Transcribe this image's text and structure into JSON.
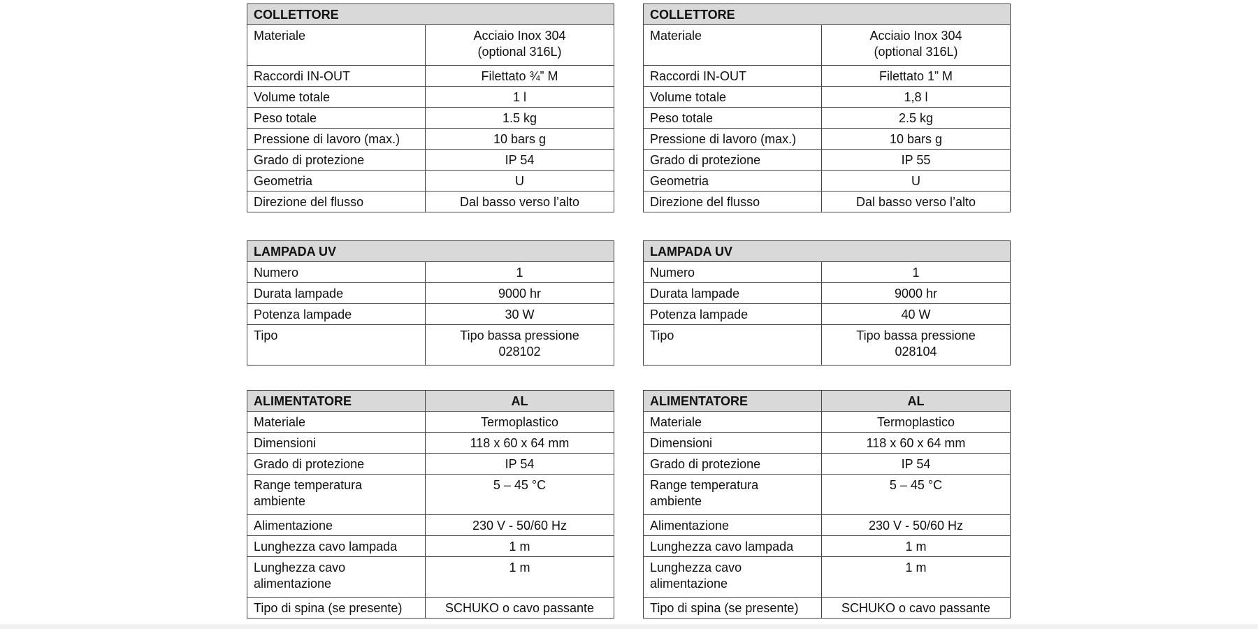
{
  "columns": [
    {
      "collettore": {
        "title": "COLLETTORE",
        "rows": [
          {
            "label": "Materiale",
            "value": "Acciaio Inox 304\n(optional 316L)",
            "tall": true
          },
          {
            "label": "Raccordi IN-OUT",
            "value": "Filettato ¾” M"
          },
          {
            "label": "Volume totale",
            "value": "1  l"
          },
          {
            "label": "Peso totale",
            "value": "1.5 kg"
          },
          {
            "label": "Pressione di lavoro (max.)",
            "value": "10 bars g"
          },
          {
            "label": "Grado di protezione",
            "value": "IP 54"
          },
          {
            "label": "Geometria",
            "value": "U"
          },
          {
            "label": "Direzione del flusso",
            "value": "Dal basso verso l’alto"
          }
        ]
      },
      "lampada": {
        "title": "LAMPADA UV",
        "rows": [
          {
            "label": "Numero",
            "value": "1"
          },
          {
            "label": "Durata lampade",
            "value": "9000 hr"
          },
          {
            "label": "Potenza lampade",
            "value": "30 W"
          },
          {
            "label": "Tipo",
            "value": "Tipo bassa pressione\n028102",
            "tall": true
          }
        ]
      },
      "alimentatore": {
        "title": "ALIMENTATORE",
        "title_value": "AL",
        "rows": [
          {
            "label": "Materiale",
            "value": "Termoplastico"
          },
          {
            "label": "Dimensioni",
            "value": "118 x 60 x 64 mm"
          },
          {
            "label": "Grado di protezione",
            "value": "IP 54"
          },
          {
            "label": "Range temperatura\nambiente",
            "value": "5 – 45 °C",
            "tall": true
          },
          {
            "label": "Alimentazione",
            "value": "230 V - 50/60 Hz"
          },
          {
            "label": "Lunghezza cavo lampada",
            "value": "1 m"
          },
          {
            "label": "Lunghezza cavo\nalimentazione",
            "value": "1 m",
            "tall": true
          },
          {
            "label": "Tipo di spina (se presente)",
            "value": "SCHUKO o cavo passante"
          }
        ]
      }
    },
    {
      "collettore": {
        "title": "COLLETTORE",
        "rows": [
          {
            "label": "Materiale",
            "value": "Acciaio Inox 304\n(optional 316L)",
            "tall": true
          },
          {
            "label": "Raccordi IN-OUT",
            "value": "Filettato 1” M"
          },
          {
            "label": "Volume totale",
            "value": "1,8 l"
          },
          {
            "label": "Peso totale",
            "value": "2.5 kg"
          },
          {
            "label": "Pressione di lavoro (max.)",
            "value": "10 bars g"
          },
          {
            "label": "Grado di protezione",
            "value": "IP 55"
          },
          {
            "label": "Geometria",
            "value": "U"
          },
          {
            "label": "Direzione del flusso",
            "value": "Dal basso verso l’alto"
          }
        ]
      },
      "lampada": {
        "title": "LAMPADA UV",
        "rows": [
          {
            "label": "Numero",
            "value": "1"
          },
          {
            "label": "Durata lampade",
            "value": "9000 hr"
          },
          {
            "label": "Potenza lampade",
            "value": "40 W"
          },
          {
            "label": "Tipo",
            "value": "Tipo bassa pressione\n028104",
            "tall": true
          }
        ]
      },
      "alimentatore": {
        "title": "ALIMENTATORE",
        "title_value": "AL",
        "rows": [
          {
            "label": "Materiale",
            "value": "Termoplastico"
          },
          {
            "label": "Dimensioni",
            "value": "118 x 60 x 64 mm"
          },
          {
            "label": "Grado di protezione",
            "value": "IP 54"
          },
          {
            "label": "Range temperatura\nambiente",
            "value": "5 – 45 °C",
            "tall": true
          },
          {
            "label": "Alimentazione",
            "value": "230 V - 50/60 Hz"
          },
          {
            "label": "Lunghezza cavo lampada",
            "value": "1 m"
          },
          {
            "label": "Lunghezza cavo\nalimentazione",
            "value": "1 m",
            "tall": true
          },
          {
            "label": "Tipo di spina (se presente)",
            "value": "SCHUKO o cavo passante"
          }
        ]
      }
    }
  ]
}
